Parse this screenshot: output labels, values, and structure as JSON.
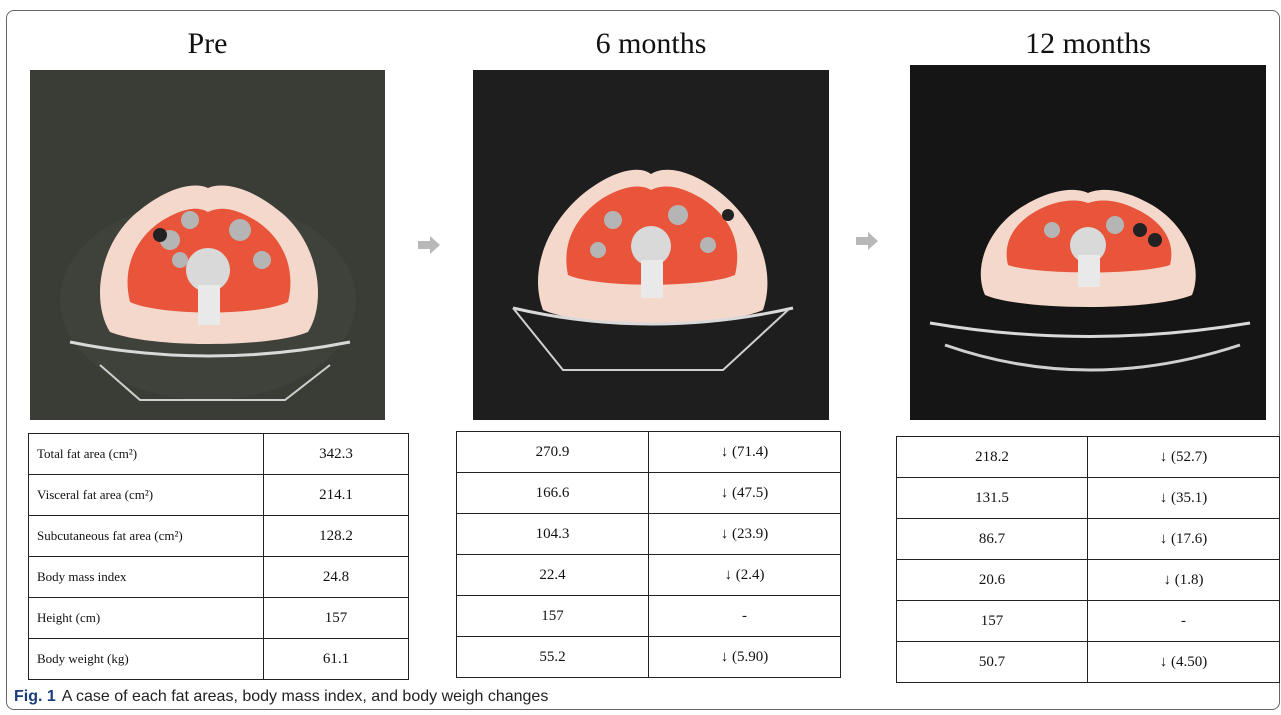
{
  "panels": [
    {
      "title": "Pre"
    },
    {
      "title": "6 months"
    },
    {
      "title": "12 months"
    }
  ],
  "table_pre": {
    "rows": [
      {
        "label": "Total fat area (cm²)",
        "value": "342.3"
      },
      {
        "label": "Visceral fat area (cm²)",
        "value": "214.1"
      },
      {
        "label": "Subcutaneous  fat area  (cm²)",
        "value": "128.2"
      },
      {
        "label": "Body mass index",
        "value": "24.8"
      },
      {
        "label": "Height (cm)",
        "value": "157"
      },
      {
        "label": "Body weight (kg)",
        "value": "61.1"
      }
    ]
  },
  "table_6m": {
    "rows": [
      {
        "value": "270.9",
        "change": "↓ (71.4)"
      },
      {
        "value": "166.6",
        "change": "↓ (47.5)"
      },
      {
        "value": "104.3",
        "change": "↓ (23.9)"
      },
      {
        "value": "22.4",
        "change": "↓  (2.4)"
      },
      {
        "value": "157",
        "change": "-"
      },
      {
        "value": "55.2",
        "change": "↓ (5.90)"
      }
    ]
  },
  "table_12m": {
    "rows": [
      {
        "value": "218.2",
        "change": "↓ (52.7)"
      },
      {
        "value": "131.5",
        "change": "↓ (35.1)"
      },
      {
        "value": "86.7",
        "change": "↓ (17.6)"
      },
      {
        "value": "20.6",
        "change": "↓  (1.8)"
      },
      {
        "value": "157",
        "change": "-"
      },
      {
        "value": "50.7",
        "change": "↓ (4.50)"
      }
    ]
  },
  "caption": {
    "label": "Fig. 1",
    "text": "A case of each fat areas, body mass index, and body weigh changes"
  },
  "colors": {
    "visceral_fat": "#e8553a",
    "subcutaneous_fat": "#f6d9cf",
    "scan_background": "#1b1b1b",
    "arrow": "#b8b8b8",
    "fig_label": "#1a3d7c"
  }
}
